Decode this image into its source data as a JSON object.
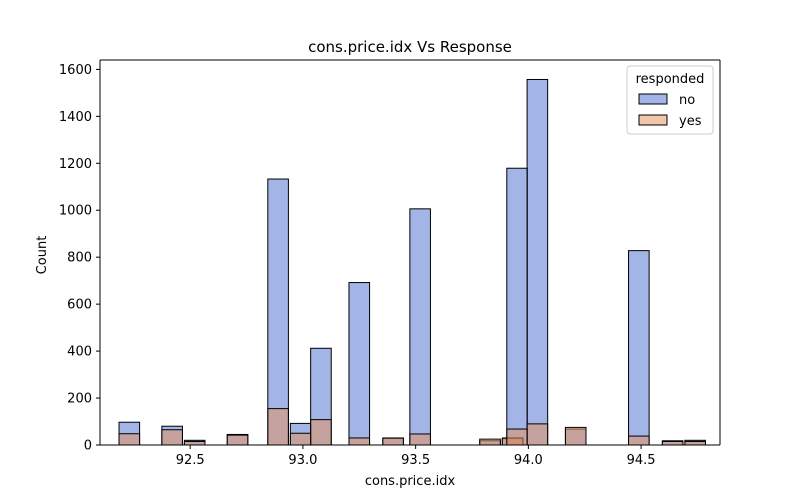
{
  "chart_data": {
    "type": "bar",
    "title": "cons.price.idx Vs Response",
    "xlabel": "cons.price.idx",
    "ylabel": "Count",
    "xlim": [
      92.1,
      94.85
    ],
    "ylim": [
      0,
      1640
    ],
    "xticks": [
      "92.5",
      "93.0",
      "93.5",
      "94.0",
      "94.5"
    ],
    "xtick_values": [
      92.5,
      93.0,
      93.5,
      94.0,
      94.5
    ],
    "yticks": [
      "0",
      "200",
      "400",
      "600",
      "800",
      "1000",
      "1200",
      "1400",
      "1600"
    ],
    "ytick_values": [
      0,
      200,
      400,
      600,
      800,
      1000,
      1200,
      1400,
      1600
    ],
    "bin_width": 0.0913,
    "legend": {
      "title": "responded",
      "position": "top-right"
    },
    "series": [
      {
        "name": "no",
        "color": "#4c72d0",
        "bins": [
          {
            "x": 92.2,
            "count": 97
          },
          {
            "x": 92.4,
            "count": 80
          },
          {
            "x": 92.5,
            "count": 20
          },
          {
            "x": 92.7,
            "count": 45
          },
          {
            "x": 92.9,
            "count": 1133
          },
          {
            "x": 93.0,
            "count": 92
          },
          {
            "x": 93.1,
            "count": 412
          },
          {
            "x": 93.2,
            "count": 692
          },
          {
            "x": 93.4,
            "count": 28
          },
          {
            "x": 93.5,
            "count": 1006
          },
          {
            "x": 93.8,
            "count": 18
          },
          {
            "x": 93.9,
            "count": 27
          },
          {
            "x": 94.0,
            "count": 1179
          },
          {
            "x": 94.0,
            "count": 1557
          },
          {
            "x": 94.2,
            "count": 68
          },
          {
            "x": 94.5,
            "count": 828
          },
          {
            "x": 94.6,
            "count": 18
          },
          {
            "x": 94.7,
            "count": 20
          }
        ]
      },
      {
        "name": "yes",
        "color": "#e8925e",
        "bins": [
          {
            "x": 92.2,
            "count": 48
          },
          {
            "x": 92.4,
            "count": 65
          },
          {
            "x": 92.5,
            "count": 15
          },
          {
            "x": 92.7,
            "count": 42
          },
          {
            "x": 92.9,
            "count": 155
          },
          {
            "x": 93.0,
            "count": 50
          },
          {
            "x": 93.1,
            "count": 108
          },
          {
            "x": 93.2,
            "count": 30
          },
          {
            "x": 93.4,
            "count": 30
          },
          {
            "x": 93.5,
            "count": 47
          },
          {
            "x": 93.8,
            "count": 25
          },
          {
            "x": 93.9,
            "count": 30
          },
          {
            "x": 94.0,
            "count": 68
          },
          {
            "x": 94.0,
            "count": 90
          },
          {
            "x": 94.2,
            "count": 75
          },
          {
            "x": 94.5,
            "count": 38
          },
          {
            "x": 94.6,
            "count": 15
          },
          {
            "x": 94.7,
            "count": 15
          }
        ]
      }
    ]
  }
}
